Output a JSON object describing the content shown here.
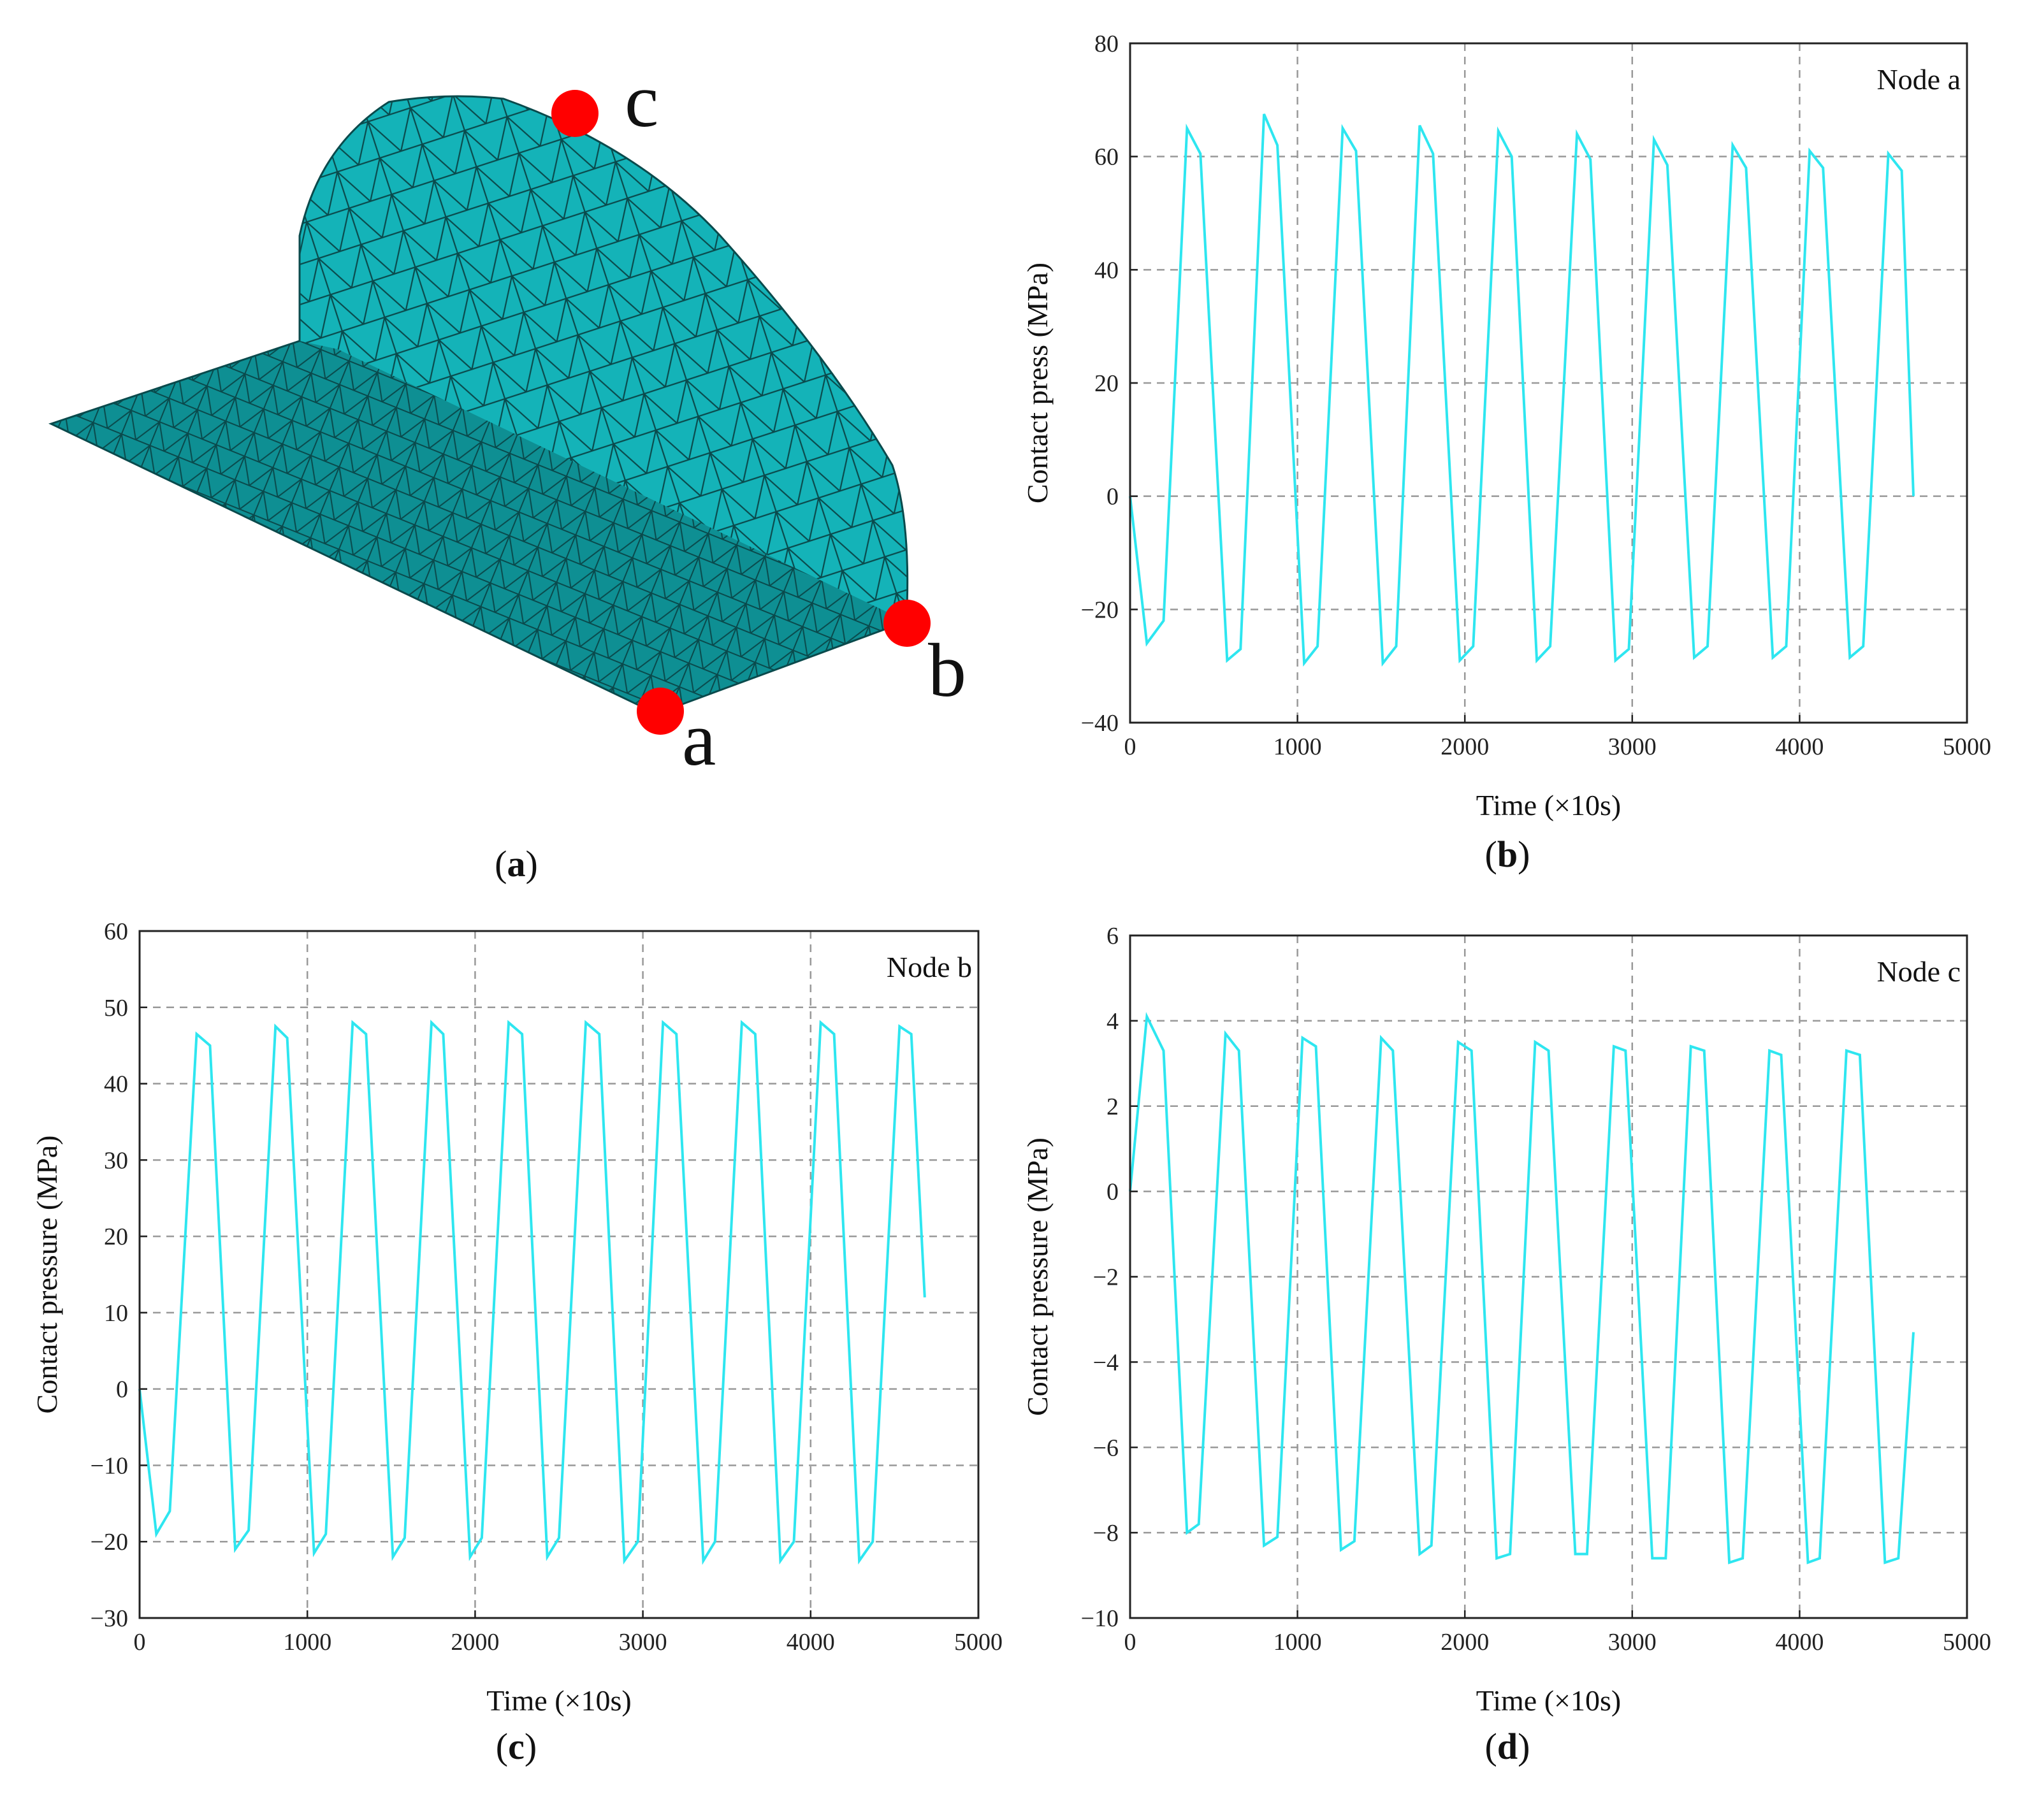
{
  "colors": {
    "series": "#2ee6f0",
    "mesh_face": "#14b3b8",
    "mesh_dark": "#0e8f93",
    "mesh_line": "#0a4a4c",
    "node_marker": "#ff0000",
    "grid": "#999999"
  },
  "panel_a": {
    "label_open": "(",
    "label_letter": "a",
    "label_close": ")",
    "nodes": [
      {
        "id": "c",
        "label": "c"
      },
      {
        "id": "b",
        "label": "b"
      },
      {
        "id": "a",
        "label": "a"
      }
    ]
  },
  "chart_data": [
    {
      "id": "b",
      "type": "line",
      "panel_label": "b",
      "legend": "Node a",
      "xlabel": "Time (×10s)",
      "ylabel": "Contact press (MPa)",
      "xlim": [
        0,
        5000
      ],
      "ylim": [
        -40,
        80
      ],
      "xticks": [
        0,
        1000,
        2000,
        3000,
        4000,
        5000
      ],
      "yticks": [
        -40,
        -20,
        0,
        20,
        40,
        60,
        80
      ],
      "grid": true,
      "x": [
        0,
        100,
        200,
        340,
        420,
        580,
        660,
        800,
        880,
        1040,
        1120,
        1270,
        1350,
        1510,
        1590,
        1730,
        1810,
        1970,
        2050,
        2200,
        2280,
        2430,
        2510,
        2670,
        2750,
        2900,
        2980,
        3130,
        3210,
        3370,
        3450,
        3600,
        3680,
        3840,
        3920,
        4060,
        4140,
        4300,
        4380,
        4530,
        4610,
        4680
      ],
      "y": [
        0,
        -26,
        -22,
        65,
        60.5,
        -29,
        -27,
        67.5,
        62,
        -29.5,
        -26.5,
        65,
        61,
        -29.5,
        -26.5,
        65.5,
        60.5,
        -29,
        -26.5,
        64.5,
        60,
        -29,
        -26.5,
        64,
        59.5,
        -29,
        -27,
        63,
        58.5,
        -28.5,
        -26.5,
        62,
        58,
        -28.5,
        -26.5,
        61,
        58,
        -28.5,
        -26.5,
        60.5,
        57.5,
        0
      ]
    },
    {
      "id": "c",
      "type": "line",
      "panel_label": "c",
      "legend": "Node b",
      "xlabel": "Time (×10s)",
      "ylabel": "Contact pressure (MPa)",
      "xlim": [
        0,
        5000
      ],
      "ylim": [
        -30,
        60
      ],
      "xticks": [
        0,
        1000,
        2000,
        3000,
        4000,
        5000
      ],
      "yticks": [
        -30,
        -20,
        -10,
        0,
        10,
        20,
        30,
        40,
        50,
        60
      ],
      "grid": true,
      "x": [
        0,
        100,
        180,
        340,
        420,
        570,
        650,
        810,
        880,
        1040,
        1110,
        1270,
        1350,
        1510,
        1580,
        1740,
        1810,
        1970,
        2040,
        2200,
        2280,
        2430,
        2500,
        2660,
        2740,
        2890,
        2970,
        3120,
        3200,
        3360,
        3430,
        3590,
        3670,
        3820,
        3900,
        4060,
        4140,
        4290,
        4370,
        4530,
        4600,
        4680
      ],
      "y": [
        0,
        -19,
        -16,
        46.5,
        45,
        -21,
        -18.5,
        47.5,
        46,
        -21.5,
        -19,
        48,
        46.5,
        -22,
        -19.5,
        48,
        46.5,
        -22,
        -19.5,
        48,
        46.5,
        -22,
        -19.5,
        48,
        46.5,
        -22.5,
        -20,
        48,
        46.5,
        -22.5,
        -20,
        48,
        46.5,
        -22.5,
        -20,
        48,
        46.5,
        -22.5,
        -20,
        47.5,
        46.5,
        12
      ]
    },
    {
      "id": "d",
      "type": "line",
      "panel_label": "d",
      "legend": "Node c",
      "xlabel": "Time (×10s)",
      "ylabel": "Contact pressure (MPa)",
      "xlim": [
        0,
        5000
      ],
      "ylim": [
        -10,
        6
      ],
      "xticks": [
        0,
        1000,
        2000,
        3000,
        4000,
        5000
      ],
      "yticks": [
        -10,
        -8,
        -6,
        -4,
        -2,
        0,
        2,
        4,
        6
      ],
      "grid": true,
      "x": [
        0,
        100,
        200,
        340,
        410,
        570,
        650,
        800,
        880,
        1030,
        1110,
        1260,
        1340,
        1500,
        1570,
        1730,
        1800,
        1960,
        2040,
        2190,
        2270,
        2420,
        2500,
        2660,
        2730,
        2890,
        2960,
        3120,
        3200,
        3350,
        3430,
        3580,
        3660,
        3820,
        3890,
        4050,
        4120,
        4280,
        4360,
        4510,
        4590,
        4680
      ],
      "y": [
        0,
        4.1,
        3.3,
        -8,
        -7.8,
        3.7,
        3.3,
        -8.3,
        -8.1,
        3.6,
        3.4,
        -8.4,
        -8.2,
        3.6,
        3.3,
        -8.5,
        -8.3,
        3.5,
        3.3,
        -8.6,
        -8.5,
        3.5,
        3.3,
        -8.5,
        -8.5,
        3.4,
        3.3,
        -8.6,
        -8.6,
        3.4,
        3.3,
        -8.7,
        -8.6,
        3.3,
        3.2,
        -8.7,
        -8.6,
        3.3,
        3.2,
        -8.7,
        -8.6,
        -3.3
      ]
    }
  ]
}
